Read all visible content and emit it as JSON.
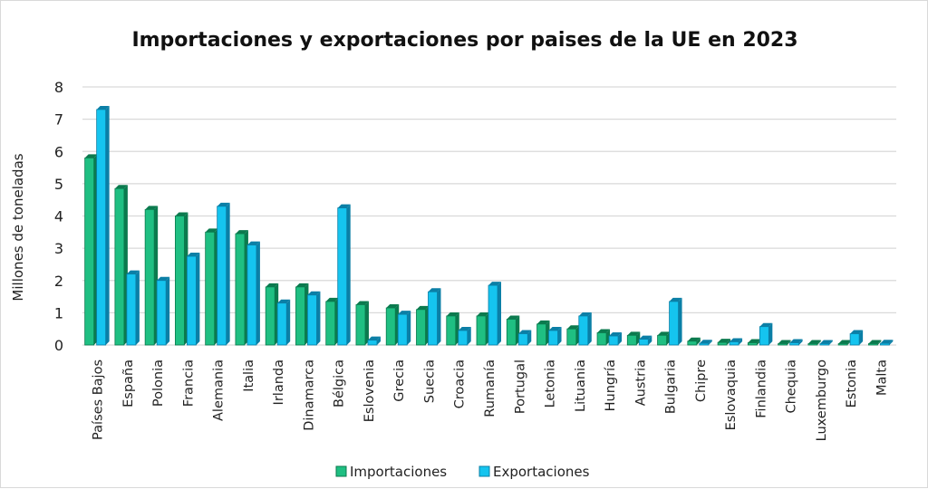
{
  "chart_data": {
    "type": "bar",
    "title": "Importaciones y exportaciones por paises de la UE en 2023",
    "xlabel": "",
    "ylabel": "Millones de toneladas",
    "ylim": [
      0,
      8
    ],
    "yticks": [
      "0",
      "1",
      "2",
      "3",
      "4",
      "5",
      "6",
      "7",
      "8"
    ],
    "grid": true,
    "legend_position": "bottom",
    "categories": [
      "Países Bajos",
      "España",
      "Polonia",
      "Francia",
      "Alemania",
      "Italia",
      "Irlanda",
      "Dinamarca",
      "Bélgica",
      "Eslovenia",
      "Grecia",
      "Suecia",
      "Croacia",
      "Rumanía",
      "Portugal",
      "Letonia",
      "Lituania",
      "Hungría",
      "Austria",
      "Bulgaria",
      "Chipre",
      "Eslovaquia",
      "Finlandia",
      "Chequia",
      "Luxemburgo",
      "Estonia",
      "Malta"
    ],
    "series": [
      {
        "name": "Importaciones",
        "color": "#1fbf82",
        "side_color": "#0b7a4e",
        "values": [
          5.8,
          4.85,
          4.2,
          4.0,
          3.5,
          3.45,
          1.8,
          1.8,
          1.35,
          1.25,
          1.15,
          1.1,
          0.9,
          0.9,
          0.8,
          0.65,
          0.5,
          0.38,
          0.3,
          0.3,
          0.12,
          0.08,
          0.07,
          0.03,
          0.02,
          0.03,
          0.01
        ]
      },
      {
        "name": "Exportaciones",
        "color": "#15c4ef",
        "side_color": "#0b7fa6",
        "values": [
          7.3,
          2.2,
          2.0,
          2.75,
          4.3,
          3.1,
          1.3,
          1.55,
          4.25,
          0.15,
          0.95,
          1.65,
          0.45,
          1.85,
          0.35,
          0.45,
          0.9,
          0.28,
          0.18,
          1.35,
          0.05,
          0.1,
          0.57,
          0.07,
          0.02,
          0.35,
          0.05
        ]
      }
    ]
  }
}
